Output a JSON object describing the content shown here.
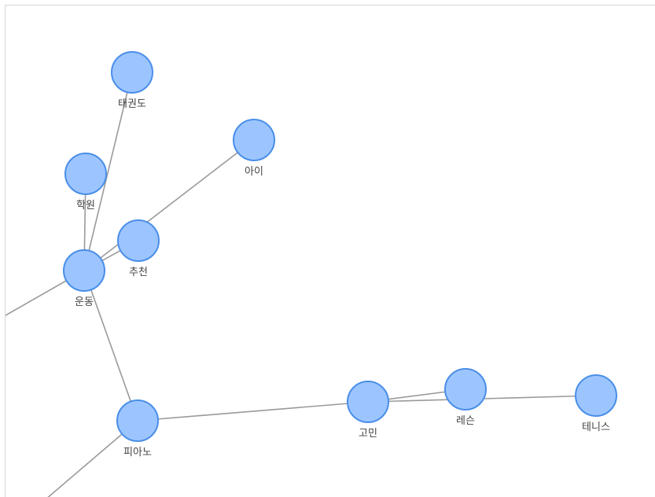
{
  "graph": {
    "nodes": [
      {
        "id": "taekwondo",
        "label": "태권도"
      },
      {
        "id": "ai",
        "label": "아이"
      },
      {
        "id": "hakwon",
        "label": "학원"
      },
      {
        "id": "chucheon",
        "label": "추천"
      },
      {
        "id": "undong",
        "label": "운동"
      },
      {
        "id": "piano",
        "label": "피아노"
      },
      {
        "id": "gomin",
        "label": "고민"
      },
      {
        "id": "lesson",
        "label": "레슨"
      },
      {
        "id": "tennis",
        "label": "테니스"
      }
    ],
    "edges": [
      {
        "from": "undong",
        "to": "taekwondo"
      },
      {
        "from": "undong",
        "to": "hakwon"
      },
      {
        "from": "undong",
        "to": "chucheon"
      },
      {
        "from": "undong",
        "to": "ai"
      },
      {
        "from": "undong",
        "to": "offscreen-left"
      },
      {
        "from": "undong",
        "to": "piano"
      },
      {
        "from": "piano",
        "to": "gomin"
      },
      {
        "from": "piano",
        "to": "offscreen-bottom"
      },
      {
        "from": "gomin",
        "to": "lesson"
      },
      {
        "from": "gomin",
        "to": "tennis"
      }
    ],
    "colors": {
      "node_fill": "#9cc5ff",
      "node_stroke": "#4a8ee8",
      "edge": "#9a9a9a",
      "label": "#444444"
    }
  }
}
